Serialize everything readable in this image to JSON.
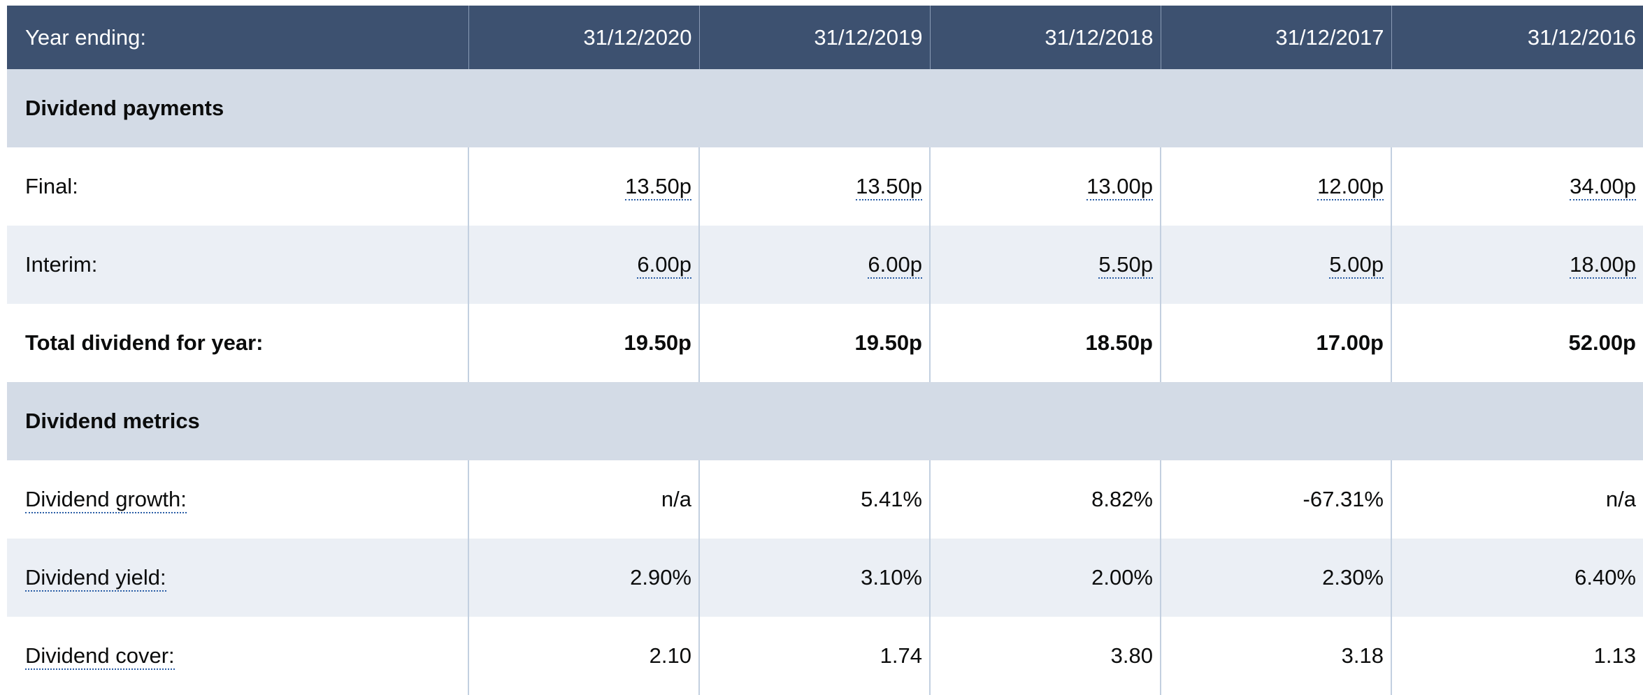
{
  "header": {
    "label": "Year ending:",
    "years": [
      "31/12/2020",
      "31/12/2019",
      "31/12/2018",
      "31/12/2017",
      "31/12/2016"
    ]
  },
  "sections": [
    {
      "title": "Dividend payments",
      "rows": [
        {
          "label": "Final:",
          "values": [
            "13.50p",
            "13.50p",
            "13.00p",
            "12.00p",
            "34.00p"
          ]
        },
        {
          "label": "Interim:",
          "values": [
            "6.00p",
            "6.00p",
            "5.50p",
            "5.00p",
            "18.00p"
          ]
        },
        {
          "label": "Total dividend for year:",
          "values": [
            "19.50p",
            "19.50p",
            "18.50p",
            "17.00p",
            "52.00p"
          ]
        }
      ]
    },
    {
      "title": "Dividend metrics",
      "rows": [
        {
          "label": "Dividend growth:",
          "values": [
            "n/a",
            "5.41%",
            "8.82%",
            "-67.31%",
            "n/a"
          ]
        },
        {
          "label": "Dividend yield:",
          "values": [
            "2.90%",
            "3.10%",
            "2.00%",
            "2.30%",
            "6.40%"
          ]
        },
        {
          "label": "Dividend cover:",
          "values": [
            "2.10",
            "1.74",
            "3.80",
            "3.18",
            "1.13"
          ]
        }
      ]
    }
  ]
}
